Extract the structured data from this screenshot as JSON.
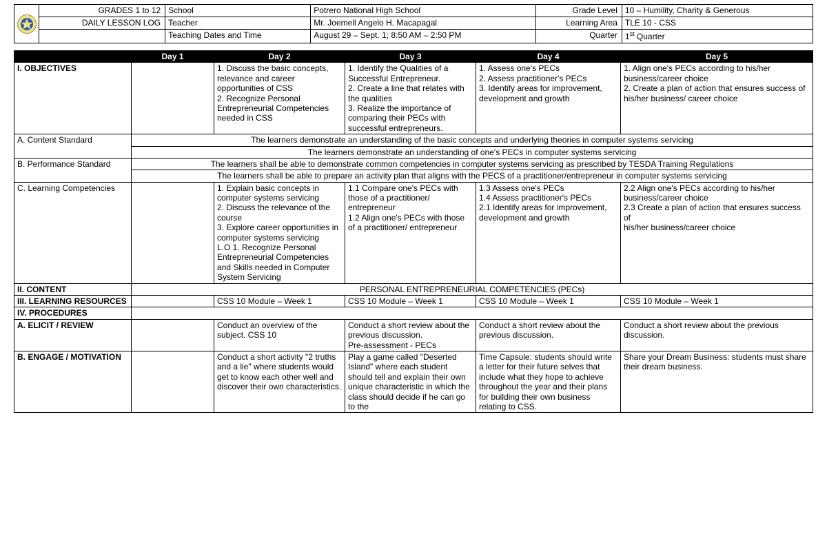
{
  "header": {
    "title1": "GRADES 1 to 12",
    "title2": "DAILY LESSON LOG",
    "fields": {
      "school_label": "School",
      "school_value": "Potrero National High School",
      "grade_label": "Grade Level",
      "grade_value": "10 – Humility, Charity & Generous",
      "teacher_label": "Teacher",
      "teacher_value": "Mr. Joemell Angelo H. Macapagal",
      "area_label": "Learning Area",
      "area_value": "TLE 10 - CSS",
      "dates_label": "Teaching Dates and Time",
      "dates_value": "August 29 – Sept. 1; 8:50 AM – 2:50 PM",
      "quarter_label": "Quarter",
      "quarter_value_prefix": "1",
      "quarter_value_suffix": " Quarter"
    }
  },
  "days": {
    "d1": "Day 1",
    "d2": "Day 2",
    "d3": "Day 3",
    "d4": "Day 4",
    "d5": "Day 5"
  },
  "rows": {
    "objectives": {
      "label": "I. OBJECTIVES",
      "d1": "",
      "d2": "1.  Discuss the basic concepts, relevance and career opportunities of CSS\n2.  Recognize Personal Entrepreneurial Competencies needed in CSS",
      "d3": "1. Identify the Qualities of a Successful Entrepreneur.\n2.  Create a line that relates with the qualities\n3. Realize the importance of comparing their PECs with successful entrepreneurs.",
      "d4": "1. Assess one's PECs\n2. Assess practitioner's PECs\n3. Identify areas for improvement, development and growth",
      "d5": "1. Align one's PECs according to his/her business/career choice\n2. Create a plan of action that ensures success of his/her business/ career choice"
    },
    "content_std": {
      "label": "A. Content Standard",
      "line1": "The learners demonstrate an understanding of the basic concepts and underlying theories in computer systems servicing",
      "line2": "The learners demonstrate an understanding of one's PECs in computer systems servicing"
    },
    "perf_std": {
      "label": "B. Performance Standard",
      "line1": "The learners shall be able to demonstrate common competencies in computer systems servicing as prescribed by TESDA Training Regulations",
      "line2": "The learners shall be able to prepare an activity plan that aligns with the PECS of a practitioner/entrepreneur in computer systems servicing"
    },
    "competencies": {
      "label": "C. Learning Competencies",
      "d1": "",
      "d2": "1. Explain basic concepts in computer systems servicing\n2. Discuss the relevance of the course\n3. Explore career opportunities in computer systems servicing\nL.O 1. Recognize Personal Entrepreneurial Competencies and Skills needed in Computer System Servicing",
      "d3": "1.1 Compare one's PECs with those of a practitioner/ entrepreneur\n1.2 Align one's PECs with those of a practitioner/ entrepreneur",
      "d4": "1.3 Assess one's PECs\n1.4 Assess practitioner's PECs\n2.1 Identify areas for improvement, development and growth",
      "d5": "2.2 Align one's PECs according to his/her\nbusiness/career choice\n 2.3 Create a plan of action that ensures success of\nhis/her business/career choice"
    },
    "content_row": {
      "label": "II. CONTENT",
      "value": "PERSONAL ENTREPRENEURIAL COMPETENCIES (PECs)"
    },
    "resources": {
      "label": "III. LEARNING RESOURCES",
      "d2": "CSS 10 Module – Week 1",
      "d3": "CSS 10 Module – Week 1",
      "d4": "CSS 10 Module – Week 1",
      "d5": "CSS 10 Module – Week 1"
    },
    "procedures": {
      "label": "IV. PROCEDURES"
    },
    "elicit": {
      "label": "A. ELICIT / REVIEW",
      "d2": "Conduct an overview of the subject. CSS 10",
      "d3": "Conduct a short review about the previous discussion.\nPre-assessment - PECs",
      "d4": "Conduct a short review about the previous discussion.",
      "d5": "Conduct a short review about the previous discussion."
    },
    "engage": {
      "label": "B. ENGAGE / MOTIVATION",
      "d2": "Conduct a short activity \"2 truths and a lie\" where students would get to know each other well and discover their own characteristics.",
      "d3": "Play a game called \"Deserted Island\" where each student should tell and explain their own unique characteristic in which the class should decide if he can go to the",
      "d4": "Time Capsule: students should write a letter for their future selves that include what they hope to achieve throughout the year and their plans for building their own business relating to CSS.",
      "d5": "Share your Dream Business: students must share their dream business."
    }
  },
  "colors": {
    "black": "#000000",
    "white": "#ffffff"
  },
  "colwidths": {
    "c0": "170",
    "c1": "120",
    "c2": "190",
    "c3": "190",
    "c4": "210",
    "c5": "250"
  }
}
